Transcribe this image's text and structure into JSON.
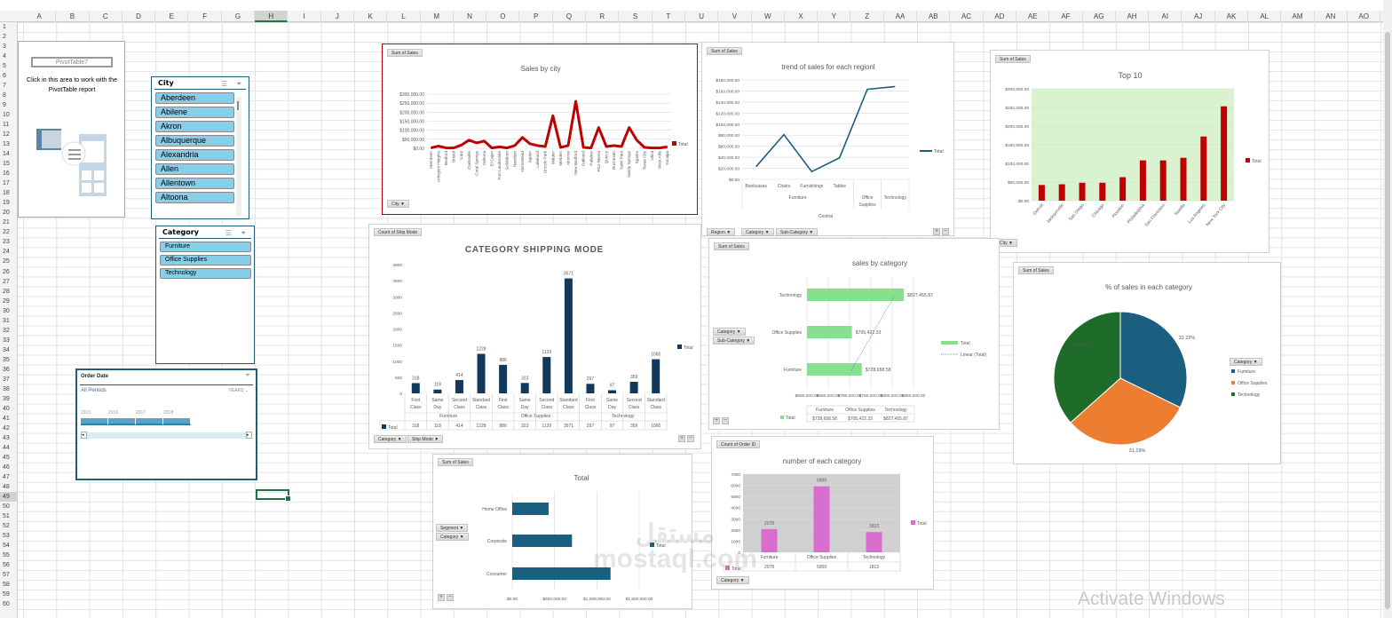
{
  "columns": [
    "A",
    "B",
    "C",
    "D",
    "E",
    "F",
    "G",
    "H",
    "I",
    "J",
    "K",
    "L",
    "M",
    "N",
    "O",
    "P",
    "Q",
    "R",
    "S",
    "T",
    "U",
    "V",
    "W",
    "X",
    "Y",
    "Z",
    "AA",
    "AB",
    "AC",
    "AD",
    "AE",
    "AF",
    "AG",
    "AH",
    "AI",
    "AJ",
    "AK",
    "AL",
    "AM",
    "AN",
    "AO"
  ],
  "selected_column": "H",
  "selected_row": 49,
  "rows": [
    1,
    2,
    3,
    4,
    5,
    6,
    7,
    8,
    9,
    10,
    11,
    12,
    13,
    14,
    15,
    16,
    17,
    18,
    19,
    20,
    21,
    22,
    23,
    24,
    25,
    26,
    27,
    28,
    29,
    30,
    31,
    32,
    33,
    34,
    35,
    36,
    37,
    38,
    39,
    40,
    41,
    42,
    43,
    44,
    45,
    46,
    47,
    48,
    49,
    50,
    51,
    52,
    53,
    54,
    55,
    56,
    57,
    58,
    59,
    60
  ],
  "pivot_placeholder": {
    "name": "PivotTable7",
    "message": "Click in this area to work with the PivotTable report"
  },
  "city_slicer": {
    "title": "City",
    "items": [
      "Aberdeen",
      "Abilene",
      "Akron",
      "Albuquerque",
      "Alexandria",
      "Allen",
      "Allentown",
      "Altoona"
    ]
  },
  "category_slicer": {
    "title": "Category",
    "items": [
      "Furniture",
      "Office Supplies",
      "Technology"
    ]
  },
  "timeline": {
    "title": "Order Date",
    "period": "All Periods",
    "level": "YEARS",
    "years": [
      "2015",
      "2016",
      "2017",
      "2018"
    ]
  },
  "watermark": "Activate Windows",
  "logo_text": "مستقل mostaql.com",
  "colors": {
    "red": "#c00000",
    "blue": "#1a5e80",
    "navy": "#12395a",
    "green": "#86e08e",
    "orange": "#ed7d31",
    "darkgreen": "#1e6b2a",
    "pink": "#d86dcd",
    "excel_green": "#217346"
  },
  "chart_data": [
    {
      "id": "city",
      "type": "line",
      "title": "Sales by city",
      "value_button": "Sum of Sales",
      "field_buttons": [
        "City"
      ],
      "legend": [
        "Total"
      ],
      "legend_position": "right",
      "color": "#c00000",
      "ylim": [
        0,
        300000
      ],
      "y_ticks": [
        "$0.00",
        "$50,000.00",
        "$100,000.00",
        "$150,000.00",
        "$200,000.00",
        "$250,000.00",
        "$300,000.00"
      ],
      "categories": [
        "Aberdeen",
        "Arlington Heights",
        "Bedford",
        "Bristol",
        "Cary",
        "Clarksville",
        "Coral Springs",
        "Deltona",
        "El Cajon",
        "Fort Lauderdale",
        "Goldsboro",
        "Hamilton",
        "Homestead",
        "Jupiter",
        "Lakeland",
        "Lincoln Park",
        "Malden",
        "Meriden",
        "Monroe",
        "New Bedford",
        "Oakland",
        "Palatine",
        "Pico Rivera",
        "Quincy",
        "Rochester",
        "Saint Paul",
        "Sandy Springs",
        "Sparks",
        "Texas City",
        "Utica",
        "West Allis",
        "Yucaipa"
      ],
      "values": [
        2000,
        12000,
        2000,
        2000,
        18000,
        45000,
        30000,
        40000,
        2000,
        8000,
        2000,
        15000,
        60000,
        25000,
        15000,
        10000,
        180000,
        5000,
        15000,
        260000,
        5000,
        2000,
        115000,
        10000,
        15000,
        10000,
        115000,
        45000,
        5000,
        2000,
        2000,
        8000
      ]
    },
    {
      "id": "trend",
      "type": "line",
      "title": "trend of sales for each regionl",
      "value_button": "Sum of Sales",
      "field_buttons": [
        "Region",
        "Category",
        "Sub-Category"
      ],
      "legend": [
        "Total"
      ],
      "legend_position": "right",
      "color": "#1a5e80",
      "ylim": [
        0,
        180000
      ],
      "y_ticks": [
        "$0.00",
        "$20,000.00",
        "$40,000.00",
        "$60,000.00",
        "$80,000.00",
        "$100,000.00",
        "$120,000.00",
        "$140,000.00",
        "$160,000.00",
        "$180,000.00"
      ],
      "categories": [
        "Bookcases",
        "Chairs",
        "Furnishings",
        "Tables",
        "Office Supplies",
        "Technology"
      ],
      "groups": [
        {
          "label": "Furniture",
          "span": 4
        },
        {
          "label": "",
          "span": 1
        },
        {
          "label": "",
          "span": 1
        }
      ],
      "outer_group": "Central",
      "values": [
        23000,
        81000,
        14000,
        39000,
        163000,
        168000
      ]
    },
    {
      "id": "top10",
      "type": "bar",
      "title": "Top 10",
      "value_button": "Sum of Sales",
      "field_buttons": [
        "City"
      ],
      "legend": [
        "Total"
      ],
      "legend_position": "right",
      "color": "#c00000",
      "plot_bg": "#d9f2d0",
      "ylim": [
        0,
        300000
      ],
      "y_ticks": [
        "$0.00",
        "$50,000.00",
        "$100,000.00",
        "$150,000.00",
        "$200,000.00",
        "$250,000.00",
        "$300,000.00"
      ],
      "categories": [
        "Detroit",
        "Jacksonville",
        "San Diego",
        "Chicago",
        "Houston",
        "Philadelphia",
        "San Francisco",
        "Seattle",
        "Los Angeles",
        "New York City"
      ],
      "values": [
        42000,
        44000,
        48000,
        48000,
        63000,
        108000,
        108000,
        115000,
        172000,
        253000
      ]
    },
    {
      "id": "ship",
      "type": "bar",
      "title": "CATEGORY SHIPPING MODE",
      "value_button": "Count of Ship Mode",
      "field_buttons": [
        "Category",
        "Ship Mode"
      ],
      "legend": [
        "Total"
      ],
      "legend_position": "right",
      "color": "#12395a",
      "ylim": [
        0,
        4000
      ],
      "y_ticks": [
        "0",
        "500",
        "1000",
        "1500",
        "2000",
        "2500",
        "3000",
        "3500",
        "4000"
      ],
      "categories": [
        "First Class",
        "Same Day",
        "Second Class",
        "Standard Class",
        "First Class",
        "Same Day",
        "Second Class",
        "Standard Class",
        "First Class",
        "Same Day",
        "Second Class",
        "Standard Class"
      ],
      "groups": [
        "Furniture",
        "Office Supplies",
        "Technology"
      ],
      "values": [
        318,
        118,
        414,
        1228,
        886,
        323,
        1129,
        3571,
        297,
        97,
        359,
        1060
      ]
    },
    {
      "id": "salescat",
      "type": "bar",
      "orientation": "horizontal",
      "title": "sales by category",
      "value_button": "Sum of Sales",
      "field_buttons": [
        "Category",
        "Sub-Category"
      ],
      "legend": [
        "Total",
        "Linear (Total)"
      ],
      "legend_position": "right",
      "color": "#86e08e",
      "xlim": [
        600000,
        850000
      ],
      "x_ticks": [
        "$600,000.00",
        "$650,000.00",
        "$700,000.00",
        "$750,000.00",
        "$800,000.00",
        "$850,000.00"
      ],
      "categories": [
        "Furniture",
        "Office Supplies",
        "Technology"
      ],
      "values": [
        728658.58,
        705422.33,
        827455.87
      ],
      "labels": [
        "$728,658.58",
        "$705,422.33",
        "$827,455.87"
      ],
      "trendline": "linear"
    },
    {
      "id": "pie",
      "type": "pie",
      "title": "% of sales in each category",
      "value_button": "Sum of Sales",
      "legend_title": "Category",
      "legend_position": "right",
      "categories": [
        "Furniture",
        "Office Supplies",
        "Technology"
      ],
      "values": [
        32.22,
        31.19,
        36.59
      ],
      "labels": [
        "32.22%",
        "31.19%",
        "36.59%"
      ],
      "colors": [
        "#1a5e80",
        "#ed7d31",
        "#1e6b2a"
      ]
    },
    {
      "id": "segment",
      "type": "bar",
      "orientation": "horizontal",
      "title": "Total",
      "value_button": "Sum of Sales",
      "field_buttons": [
        "Segment",
        "Category"
      ],
      "legend": [
        "Total"
      ],
      "legend_position": "right",
      "color": "#1a5e80",
      "xlim": [
        0,
        1500000
      ],
      "x_ticks": [
        "$0.00",
        "$500,000.00",
        "$1,000,000.00",
        "$1,500,000.00"
      ],
      "categories": [
        "Consumer",
        "Corporate",
        "Home Office"
      ],
      "values": [
        1161401,
        706146,
        429653
      ]
    },
    {
      "id": "count",
      "type": "bar",
      "title": "number of each category",
      "value_button": "Count of Order ID",
      "field_buttons": [
        "Category"
      ],
      "legend": [
        "Total"
      ],
      "legend_position": "right",
      "color": "#d86dcd",
      "plot_bg": "#d0d0d0",
      "ylim": [
        0,
        7000
      ],
      "y_ticks": [
        "0",
        "1000",
        "2000",
        "3000",
        "4000",
        "5000",
        "6000",
        "7000"
      ],
      "categories": [
        "Furniture",
        "Office Supplies",
        "Technology"
      ],
      "values": [
        2078,
        5909,
        1813
      ]
    }
  ]
}
